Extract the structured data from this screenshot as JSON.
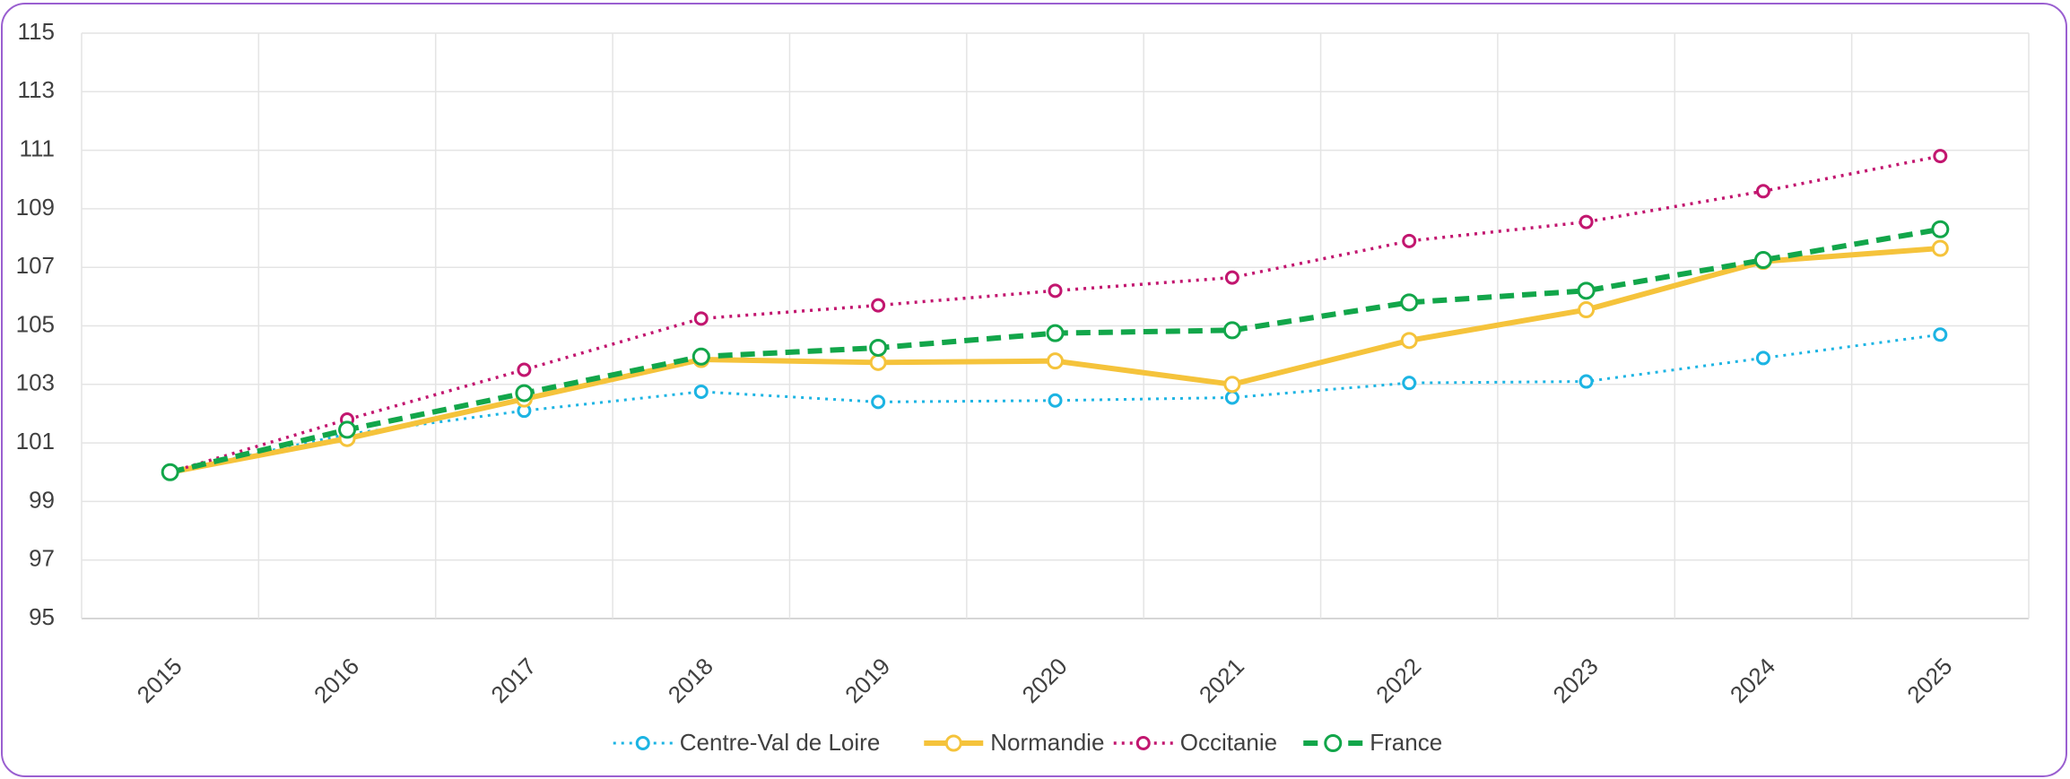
{
  "chart_data": {
    "type": "line",
    "categories": [
      "2015",
      "2016",
      "2017",
      "2018",
      "2019",
      "2020",
      "2021",
      "2022",
      "2023",
      "2024",
      "2025"
    ],
    "series": [
      {
        "name": "Centre-Val de Loire",
        "color": "#1cb4e3",
        "values": [
          100,
          101.3,
          102.1,
          102.75,
          102.4,
          102.45,
          102.55,
          103.05,
          103.1,
          103.9,
          104.7
        ]
      },
      {
        "name": "Normandie",
        "color": "#f5c33b",
        "values": [
          100,
          101.15,
          102.5,
          103.85,
          103.75,
          103.8,
          103.0,
          104.5,
          105.55,
          107.2,
          107.65
        ]
      },
      {
        "name": "Occitanie",
        "color": "#c2166f",
        "values": [
          100,
          101.8,
          103.5,
          105.25,
          105.7,
          106.2,
          106.65,
          107.9,
          108.55,
          109.6,
          110.8
        ]
      },
      {
        "name": "France",
        "color": "#12a64a",
        "values": [
          100,
          101.45,
          102.7,
          103.95,
          104.25,
          104.75,
          104.85,
          105.8,
          106.2,
          107.25,
          108.3
        ]
      }
    ],
    "ylim": [
      95,
      115
    ],
    "yticks": [
      95,
      97,
      99,
      101,
      103,
      105,
      107,
      109,
      111,
      113,
      115
    ],
    "grid": true,
    "legend": "bottom"
  }
}
